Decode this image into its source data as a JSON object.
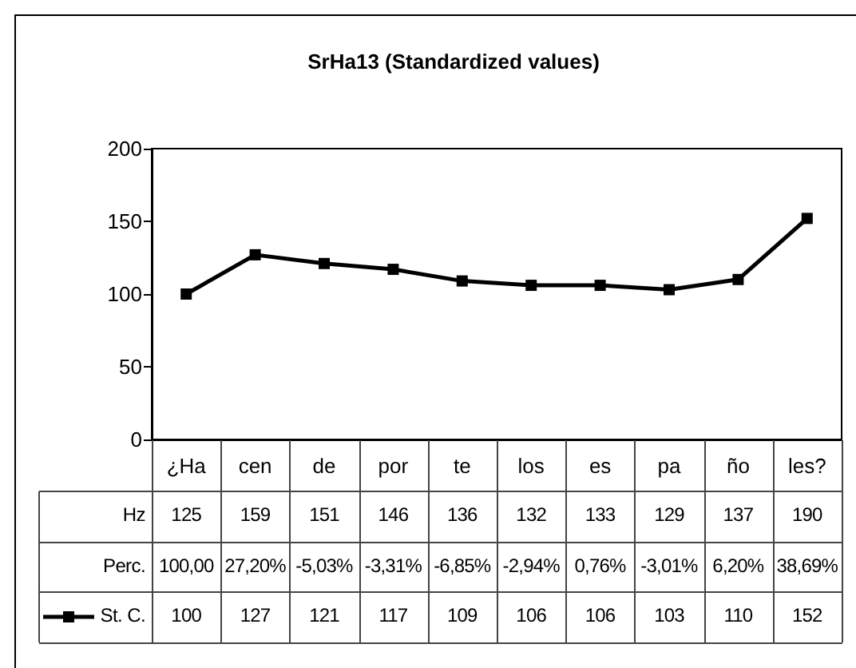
{
  "chart_data": [
    {
      "type": "line",
      "title": "SrHa13 (Standardized values)",
      "categories": [
        "¿Ha",
        "cen",
        "de",
        "por",
        "te",
        "los",
        "es",
        "pa",
        "ño",
        "les?"
      ],
      "series": [
        {
          "name": "St. C.",
          "color": "#000000",
          "values": [
            100,
            127,
            121,
            117,
            109,
            106,
            106,
            103,
            110,
            152
          ]
        }
      ],
      "ylim": [
        0,
        200
      ],
      "yticks": [
        0,
        50,
        100,
        150,
        200
      ],
      "grid": false,
      "legend": "bottom left",
      "marker": "square",
      "line_style": "solid",
      "data_labels": true
    },
    {
      "type": "other",
      "annotations": [
        "Hz",
        "125",
        "159",
        "151",
        "146",
        "136",
        "132",
        "133",
        "129",
        "137",
        "190",
        "Perc.",
        "100,00",
        "27,20%",
        "-5,03%",
        "-3,31%",
        "-6,85%",
        "-2,94%",
        "0,76%",
        "-3,01%",
        "6,20%",
        "38,69%"
      ]
    }
  ]
}
